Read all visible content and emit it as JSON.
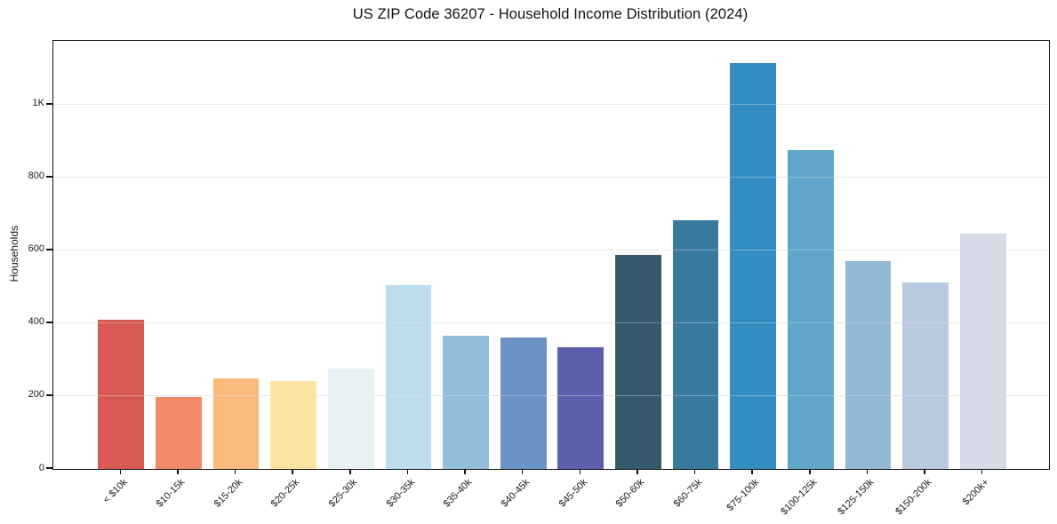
{
  "chart_data": {
    "type": "bar",
    "title": "US ZIP Code 36207 - Household Income Distribution (2024)",
    "xlabel": "",
    "ylabel": "Households",
    "categories": [
      "< $10k",
      "$10-15k",
      "$15-20k",
      "$20-25k",
      "$25-30k",
      "$30-35k",
      "$35-40k",
      "$40-45k",
      "$45-50k",
      "$50-60k",
      "$60-75k",
      "$75-100k",
      "$100-125k",
      "$125-150k",
      "$150-200k",
      "$200k+"
    ],
    "values": [
      410,
      198,
      249,
      242,
      275,
      505,
      365,
      362,
      334,
      587,
      682,
      1115,
      876,
      570,
      513,
      645
    ],
    "bar_colors": [
      "#d85a52",
      "#f08a68",
      "#fbba7c",
      "#fde4a2",
      "#e7f2f5",
      "#bcdeec",
      "#93bedc",
      "#6c93c6",
      "#5b5fae",
      "#35596b",
      "#38799e",
      "#348dc2",
      "#5fa6c8",
      "#91b8d4",
      "#b8c9e0",
      "#d6d9e6"
    ],
    "ylim": [
      0,
      1175
    ],
    "yticks": {
      "values": [
        0,
        200,
        400,
        600,
        800,
        1000
      ],
      "labels": [
        "0",
        "200",
        "400",
        "600",
        "800",
        "1K"
      ]
    },
    "grid": "horizontal",
    "legend": "none",
    "background_color": "#ffffff",
    "grid_color": "#e5e5e5",
    "spine_color": "#111111"
  }
}
